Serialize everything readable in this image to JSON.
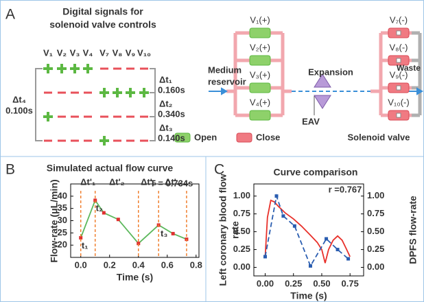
{
  "panel_a": {
    "label": "A",
    "title_lines": [
      "Digital signals for",
      "solenoid valve controls"
    ],
    "valves": [
      "V₁",
      "V₂",
      "V₃",
      "V₄",
      "V₇",
      "V₈",
      "V₉",
      "V₁₀"
    ],
    "intervals": [
      {
        "label": "Δt₁",
        "value": "0.160s"
      },
      {
        "label": "Δt₂",
        "value": "0.340s"
      },
      {
        "label": "Δt₃",
        "value": "0.140s"
      },
      {
        "label": "Δt₄",
        "value": "0.100s"
      }
    ],
    "diagram": {
      "left_valves": [
        "V₁(+)",
        "V₂(+)",
        "V₃(+)",
        "V₄(+)"
      ],
      "right_valves": [
        "V₇(-)",
        "V₈(-)",
        "V₉(-)",
        "V₁₀(-)"
      ],
      "inlet": [
        "Medium",
        "reservoir"
      ],
      "expansion": "Expansion",
      "eav": "EAV",
      "outlet": "Waste",
      "legend_open": "Open",
      "legend_close": "Close",
      "solenoid": "Solenoid valve"
    }
  },
  "chart_data": [
    {
      "panel_label": "B",
      "type": "line",
      "title": "Simulated actual flow curve",
      "x_label": "Time (s)",
      "y_label": "Flow-rate (μL/min)",
      "x": [
        0,
        0.1,
        0.16,
        0.26,
        0.4,
        0.54,
        0.64,
        0.734
      ],
      "series": [
        {
          "color": "#5cb85c",
          "marker_color": "#e03030",
          "values": [
            23.0,
            38.3,
            33.2,
            30.5,
            20.7,
            28.2,
            24.7,
            22.4
          ]
        }
      ],
      "xlim": [
        -0.07,
        0.82
      ],
      "ylim": [
        15,
        45
      ],
      "xticks": [
        {
          "value": 0,
          "label": "0.0"
        },
        0.2,
        0.4,
        0.6,
        0.8
      ],
      "yticks": [
        20,
        25,
        30,
        35,
        40
      ],
      "annotations": {
        "period": "T = 0.734s",
        "intervals": [
          "Δt'₁",
          "Δt'₂",
          "Δt'₃",
          "Δt'₄"
        ],
        "points": [
          "t₁",
          "t₂",
          "t₃"
        ]
      }
    },
    {
      "panel_label": "C",
      "type": "line",
      "title": "Curve comparison",
      "x_label": "Time (s)",
      "y_label": [
        "Left coronary blood flow",
        "rate"
      ],
      "y2_label": "DPFS flow-rate",
      "annotation": "r =0.767",
      "series": [
        {
          "color": "#e8302a",
          "x": [
            0,
            0.02,
            0.05,
            0.08,
            0.12,
            0.18,
            0.25,
            0.32,
            0.4,
            0.46,
            0.5,
            0.53,
            0.56,
            0.6,
            0.64,
            0.68,
            0.72,
            0.75
          ],
          "values": [
            0.15,
            0.7,
            0.94,
            0.92,
            0.85,
            0.76,
            0.68,
            0.58,
            0.45,
            0.35,
            0.25,
            0.06,
            0.25,
            0.38,
            0.44,
            0.38,
            0.25,
            0.15
          ]
        },
        {
          "color": "#2a5db0",
          "axis": "y2",
          "dashed": true,
          "marker_color": "#2a5db0",
          "x": [
            0,
            0.1,
            0.16,
            0.26,
            0.4,
            0.54,
            0.64,
            0.734
          ],
          "values": [
            0.15,
            1.0,
            0.72,
            0.58,
            0.02,
            0.4,
            0.25,
            0.12
          ]
        }
      ],
      "xlim": [
        -0.1,
        0.87
      ],
      "ylim": [
        -0.12,
        1.17
      ],
      "y2lim": [
        -0.12,
        1.17
      ],
      "xticks": [
        {
          "value": 0,
          "label": "0.00"
        },
        0.25,
        {
          "value": 0.5,
          "label": "0.50"
        },
        0.75
      ],
      "yticks": [
        {
          "value": 0,
          "label": "0.00"
        },
        0.25,
        {
          "value": 0.5,
          "label": "0.50"
        },
        0.75,
        {
          "value": 1,
          "label": "1.00"
        }
      ],
      "y2ticks": [
        {
          "value": 0,
          "label": "0.00"
        },
        0.25,
        {
          "value": 0.5,
          "label": "0.50"
        },
        0.75,
        {
          "value": 1,
          "label": "1.00"
        }
      ]
    }
  ]
}
